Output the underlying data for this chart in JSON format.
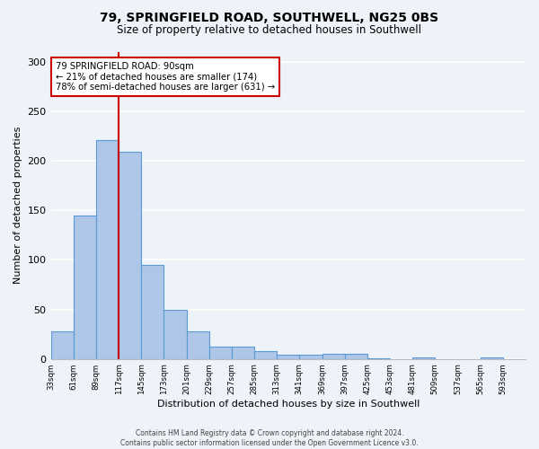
{
  "title": "79, SPRINGFIELD ROAD, SOUTHWELL, NG25 0BS",
  "subtitle": "Size of property relative to detached houses in Southwell",
  "xlabel": "Distribution of detached houses by size in Southwell",
  "ylabel": "Number of detached properties",
  "bin_labels": [
    "33sqm",
    "61sqm",
    "89sqm",
    "117sqm",
    "145sqm",
    "173sqm",
    "201sqm",
    "229sqm",
    "257sqm",
    "285sqm",
    "313sqm",
    "341sqm",
    "369sqm",
    "397sqm",
    "425sqm",
    "453sqm",
    "481sqm",
    "509sqm",
    "537sqm",
    "565sqm",
    "593sqm"
  ],
  "bar_values": [
    28,
    145,
    221,
    209,
    95,
    50,
    28,
    12,
    12,
    8,
    4,
    4,
    5,
    5,
    1,
    0,
    2,
    0,
    0,
    2
  ],
  "bar_color": "#aec6e8",
  "bar_edge_color": "#5b9bd5",
  "background_color": "#eef2f9",
  "grid_color": "#ffffff",
  "ylim": [
    0,
    310
  ],
  "yticks": [
    0,
    50,
    100,
    150,
    200,
    250,
    300
  ],
  "property_line_color": "#cc0000",
  "annotation_text": "79 SPRINGFIELD ROAD: 90sqm\n← 21% of detached houses are smaller (174)\n78% of semi-detached houses are larger (631) →",
  "annotation_box_color": "#cc0000",
  "footer_line1": "Contains HM Land Registry data © Crown copyright and database right 2024.",
  "footer_line2": "Contains public sector information licensed under the Open Government Licence v3.0."
}
